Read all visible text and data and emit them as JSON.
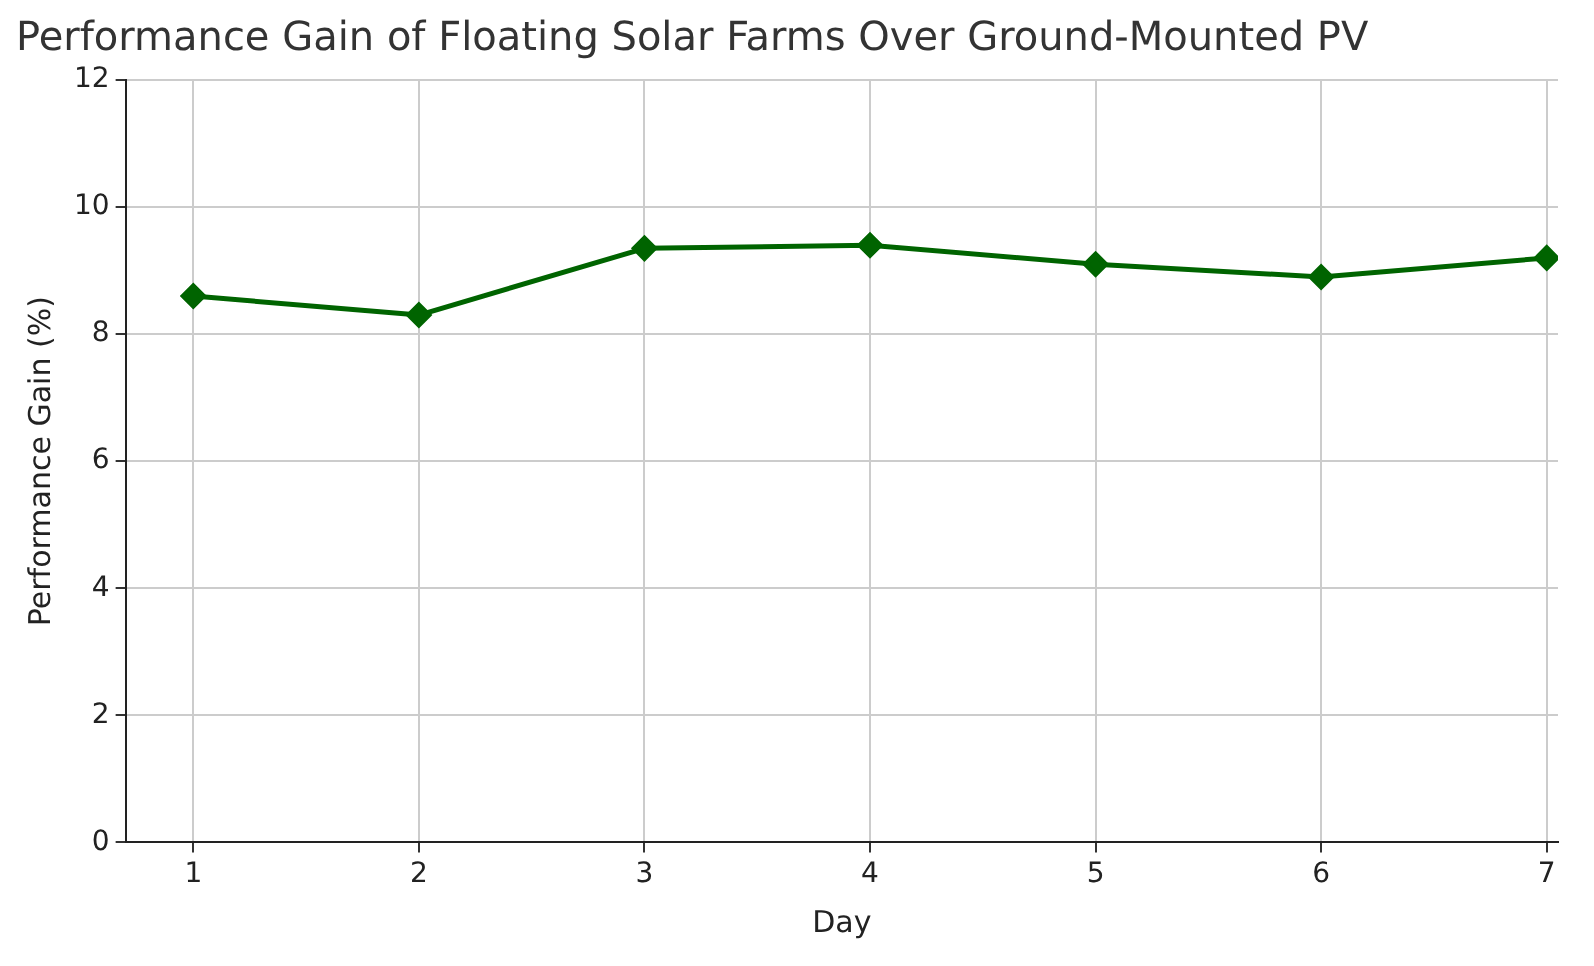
{
  "chart_data": {
    "type": "line",
    "title": "Performance Gain of Floating Solar Farms Over Ground-Mounted PV",
    "xlabel": "Day",
    "ylabel": "Performance Gain (%)",
    "x": [
      1,
      2,
      3,
      4,
      5,
      6,
      7
    ],
    "series": [
      {
        "color": "#006400",
        "values": [
          8.6,
          8.3,
          9.35,
          9.4,
          9.1,
          8.9,
          9.2
        ]
      }
    ],
    "xlim": [
      0.7,
      7.05
    ],
    "xticks": [
      1,
      2,
      3,
      4,
      5,
      6,
      7
    ],
    "ylim": [
      0,
      12
    ],
    "yticks": [
      0,
      2,
      4,
      6,
      8,
      10,
      12
    ],
    "grid": true,
    "marker": "diamond",
    "line_style": "solid"
  }
}
